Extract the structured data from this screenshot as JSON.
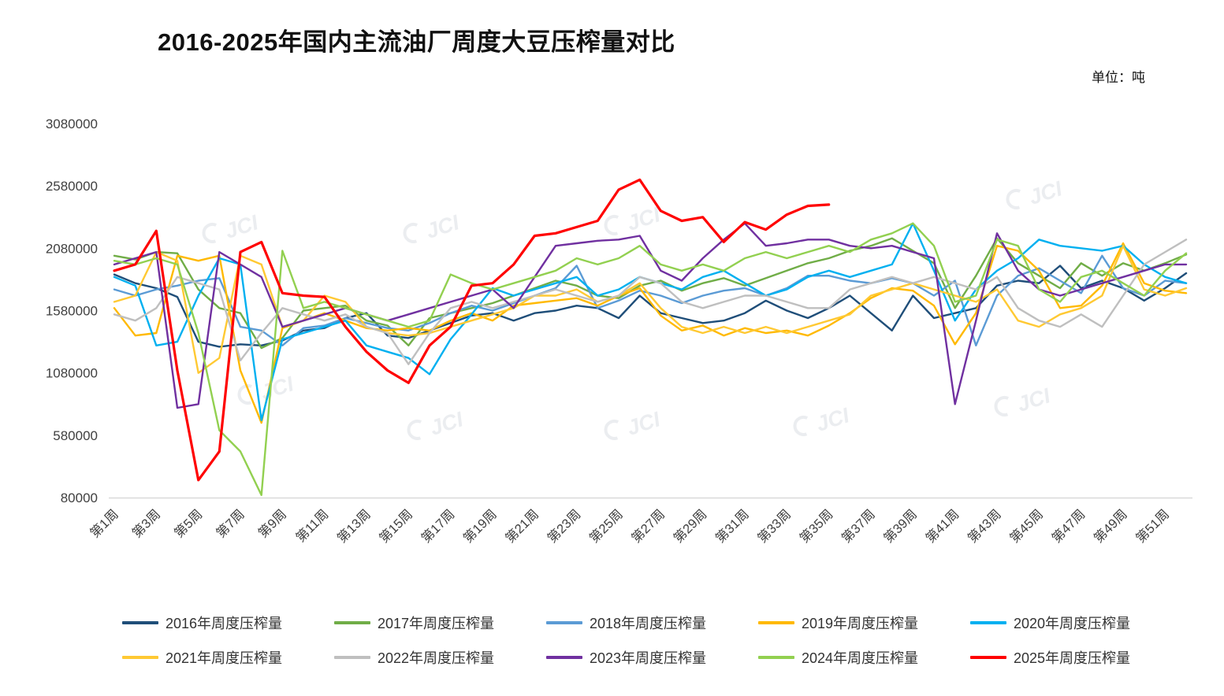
{
  "title": "2016-2025年国内主流油厂周度大豆压榨量对比",
  "unit_label": "单位：吨",
  "watermark_text": "JCI",
  "chart_data": {
    "type": "line",
    "title": "2016-2025年国内主流油厂周度大豆压榨量对比",
    "unit": "吨",
    "xlabel": "",
    "ylabel": "",
    "grid": false,
    "legend_position": "bottom",
    "ylim": [
      80000,
      3080000
    ],
    "y_ticks": [
      3080000,
      2580000,
      2080000,
      1580000,
      1080000,
      580000,
      80000
    ],
    "x_tick_labels": [
      "第1周",
      "第3周",
      "第5周",
      "第7周",
      "第9周",
      "第11周",
      "第13周",
      "第15周",
      "第17周",
      "第19周",
      "第21周",
      "第23周",
      "第25周",
      "第27周",
      "第29周",
      "第31周",
      "第33周",
      "第35周",
      "第37周",
      "第39周",
      "第41周",
      "第43周",
      "第45周",
      "第47周",
      "第49周",
      "第51周"
    ],
    "weeks_total": 52,
    "series": [
      {
        "name": "2016年周度压榨量",
        "color": "#1F4E79",
        "values": [
          1870000,
          1800000,
          1760000,
          1690000,
          1330000,
          1290000,
          1310000,
          1300000,
          1340000,
          1420000,
          1440000,
          1520000,
          1560000,
          1380000,
          1360000,
          1420000,
          1480000,
          1540000,
          1560000,
          1500000,
          1560000,
          1580000,
          1620000,
          1600000,
          1520000,
          1700000,
          1560000,
          1520000,
          1480000,
          1500000,
          1560000,
          1660000,
          1580000,
          1520000,
          1600000,
          1700000,
          1560000,
          1420000,
          1700000,
          1520000,
          1560000,
          1600000,
          1780000,
          1820000,
          1800000,
          1940000,
          1760000,
          1820000,
          1760000,
          1660000,
          1760000,
          1880000
        ]
      },
      {
        "name": "2017年周度压榨量",
        "color": "#70AD47",
        "values": [
          2020000,
          1990000,
          2050000,
          2040000,
          1750000,
          1600000,
          1560000,
          1280000,
          1360000,
          1580000,
          1600000,
          1620000,
          1500000,
          1460000,
          1300000,
          1520000,
          1560000,
          1600000,
          1640000,
          1700000,
          1760000,
          1820000,
          1780000,
          1700000,
          1680000,
          1780000,
          1820000,
          1740000,
          1800000,
          1840000,
          1780000,
          1840000,
          1900000,
          1960000,
          2000000,
          2060000,
          2100000,
          2160000,
          2060000,
          1960000,
          1600000,
          1860000,
          2160000,
          1960000,
          1860000,
          1760000,
          1960000,
          1860000,
          1960000,
          1900000,
          1960000,
          2030000
        ]
      },
      {
        "name": "2018年周度压榨量",
        "color": "#5B9BD5",
        "values": [
          1750000,
          1700000,
          1750000,
          1780000,
          1820000,
          1840000,
          1450000,
          1420000,
          1300000,
          1440000,
          1460000,
          1520000,
          1480000,
          1440000,
          1420000,
          1480000,
          1560000,
          1620000,
          1580000,
          1640000,
          1700000,
          1760000,
          1940000,
          1600000,
          1660000,
          1740000,
          1700000,
          1640000,
          1700000,
          1740000,
          1760000,
          1700000,
          1760000,
          1860000,
          1860000,
          1820000,
          1800000,
          1840000,
          1800000,
          1700000,
          1820000,
          1300000,
          1700000,
          1860000,
          1920000,
          1820000,
          1720000,
          2020000,
          1760000,
          1700000,
          1820000,
          1800000
        ]
      },
      {
        "name": "2019年周度压榨量",
        "color": "#FFB900",
        "values": [
          1600000,
          1380000,
          1400000,
          2020000,
          1980000,
          2020000,
          1100000,
          680000,
          1440000,
          1500000,
          1560000,
          1500000,
          1440000,
          1420000,
          1440000,
          1420000,
          1500000,
          1560000,
          1500000,
          1620000,
          1640000,
          1660000,
          1680000,
          1620000,
          1700000,
          1760000,
          1540000,
          1420000,
          1460000,
          1380000,
          1440000,
          1400000,
          1420000,
          1380000,
          1460000,
          1560000,
          1680000,
          1760000,
          1740000,
          1620000,
          1310000,
          1560000,
          2100000,
          2060000,
          1900000,
          1600000,
          1620000,
          1780000,
          2120000,
          1800000,
          1740000,
          1720000
        ]
      },
      {
        "name": "2020年周度压榨量",
        "color": "#00B0F0",
        "values": [
          1850000,
          1780000,
          1300000,
          1330000,
          1700000,
          2000000,
          1950000,
          700000,
          1350000,
          1400000,
          1450000,
          1500000,
          1300000,
          1250000,
          1200000,
          1070000,
          1350000,
          1550000,
          1760000,
          1700000,
          1750000,
          1800000,
          1850000,
          1700000,
          1750000,
          1850000,
          1800000,
          1750000,
          1850000,
          1900000,
          1800000,
          1700000,
          1750000,
          1850000,
          1900000,
          1850000,
          1900000,
          1950000,
          2280000,
          1900000,
          1500000,
          1750000,
          1900000,
          2000000,
          2150000,
          2100000,
          2080000,
          2060000,
          2100000,
          1950000,
          1850000,
          1800000
        ]
      },
      {
        "name": "2021年周度压榨量",
        "color": "#FFC933",
        "values": [
          1650000,
          1700000,
          2050000,
          1980000,
          1080000,
          1200000,
          2020000,
          1950000,
          1450000,
          1500000,
          1700000,
          1650000,
          1450000,
          1400000,
          1380000,
          1400000,
          1450000,
          1500000,
          1550000,
          1600000,
          1700000,
          1700000,
          1750000,
          1650000,
          1700000,
          1800000,
          1600000,
          1450000,
          1400000,
          1450000,
          1400000,
          1450000,
          1400000,
          1450000,
          1500000,
          1550000,
          1700000,
          1750000,
          1800000,
          1750000,
          1700000,
          1650000,
          1750000,
          1500000,
          1450000,
          1550000,
          1600000,
          1700000,
          2100000,
          1750000,
          1700000,
          1760000
        ]
      },
      {
        "name": "2022年周度压榨量",
        "color": "#BFBFBF",
        "values": [
          1550000,
          1500000,
          1600000,
          1850000,
          1800000,
          1750000,
          1180000,
          1400000,
          1600000,
          1550000,
          1500000,
          1550000,
          1450000,
          1400000,
          1150000,
          1400000,
          1600000,
          1650000,
          1600000,
          1650000,
          1700000,
          1750000,
          1700000,
          1650000,
          1700000,
          1850000,
          1800000,
          1650000,
          1600000,
          1650000,
          1700000,
          1700000,
          1650000,
          1600000,
          1600000,
          1750000,
          1800000,
          1850000,
          1800000,
          1850000,
          1800000,
          1750000,
          1850000,
          1600000,
          1500000,
          1450000,
          1550000,
          1450000,
          1700000,
          1950000,
          2050000,
          2150000
        ]
      },
      {
        "name": "2023年周度压榨量",
        "color": "#7030A0",
        "values": [
          1950000,
          2000000,
          2050000,
          800000,
          830000,
          2050000,
          1950000,
          1850000,
          1450000,
          1500000,
          1550000,
          1600000,
          1550000,
          1500000,
          1550000,
          1600000,
          1650000,
          1700000,
          1750000,
          1600000,
          1850000,
          2100000,
          2120000,
          2140000,
          2150000,
          2180000,
          1900000,
          1820000,
          2000000,
          2150000,
          2280000,
          2100000,
          2120000,
          2150000,
          2150000,
          2100000,
          2080000,
          2100000,
          2050000,
          2000000,
          830000,
          1500000,
          2200000,
          1900000,
          1750000,
          1700000,
          1750000,
          1800000,
          1850000,
          1900000,
          1950000,
          1950000
        ]
      },
      {
        "name": "2024年周度压榨量",
        "color": "#92D050",
        "values": [
          1980000,
          1950000,
          2000000,
          1950000,
          1400000,
          620000,
          450000,
          100000,
          2060000,
          1600000,
          1650000,
          1600000,
          1550000,
          1500000,
          1450000,
          1500000,
          1870000,
          1800000,
          1750000,
          1800000,
          1850000,
          1900000,
          2000000,
          1950000,
          2000000,
          2100000,
          1950000,
          1900000,
          1950000,
          1900000,
          2000000,
          2050000,
          2000000,
          2050000,
          2100000,
          2050000,
          2150000,
          2200000,
          2280000,
          2100000,
          1650000,
          1700000,
          2150000,
          2100000,
          1750000,
          1650000,
          1850000,
          1900000,
          1800000,
          1700000,
          1900000,
          2040000
        ]
      },
      {
        "name": "2025年周度压榨量",
        "color": "#FF0000",
        "values": [
          1900000,
          1950000,
          2220000,
          1100000,
          220000,
          450000,
          2050000,
          2130000,
          1720000,
          1700000,
          1690000,
          1450000,
          1250000,
          1100000,
          1000000,
          1300000,
          1450000,
          1780000,
          1800000,
          1950000,
          2180000,
          2200000,
          2250000,
          2300000,
          2550000,
          2630000,
          2380000,
          2300000,
          2330000,
          2130000,
          2290000,
          2230000,
          2350000,
          2420000,
          2430000
        ]
      }
    ]
  }
}
